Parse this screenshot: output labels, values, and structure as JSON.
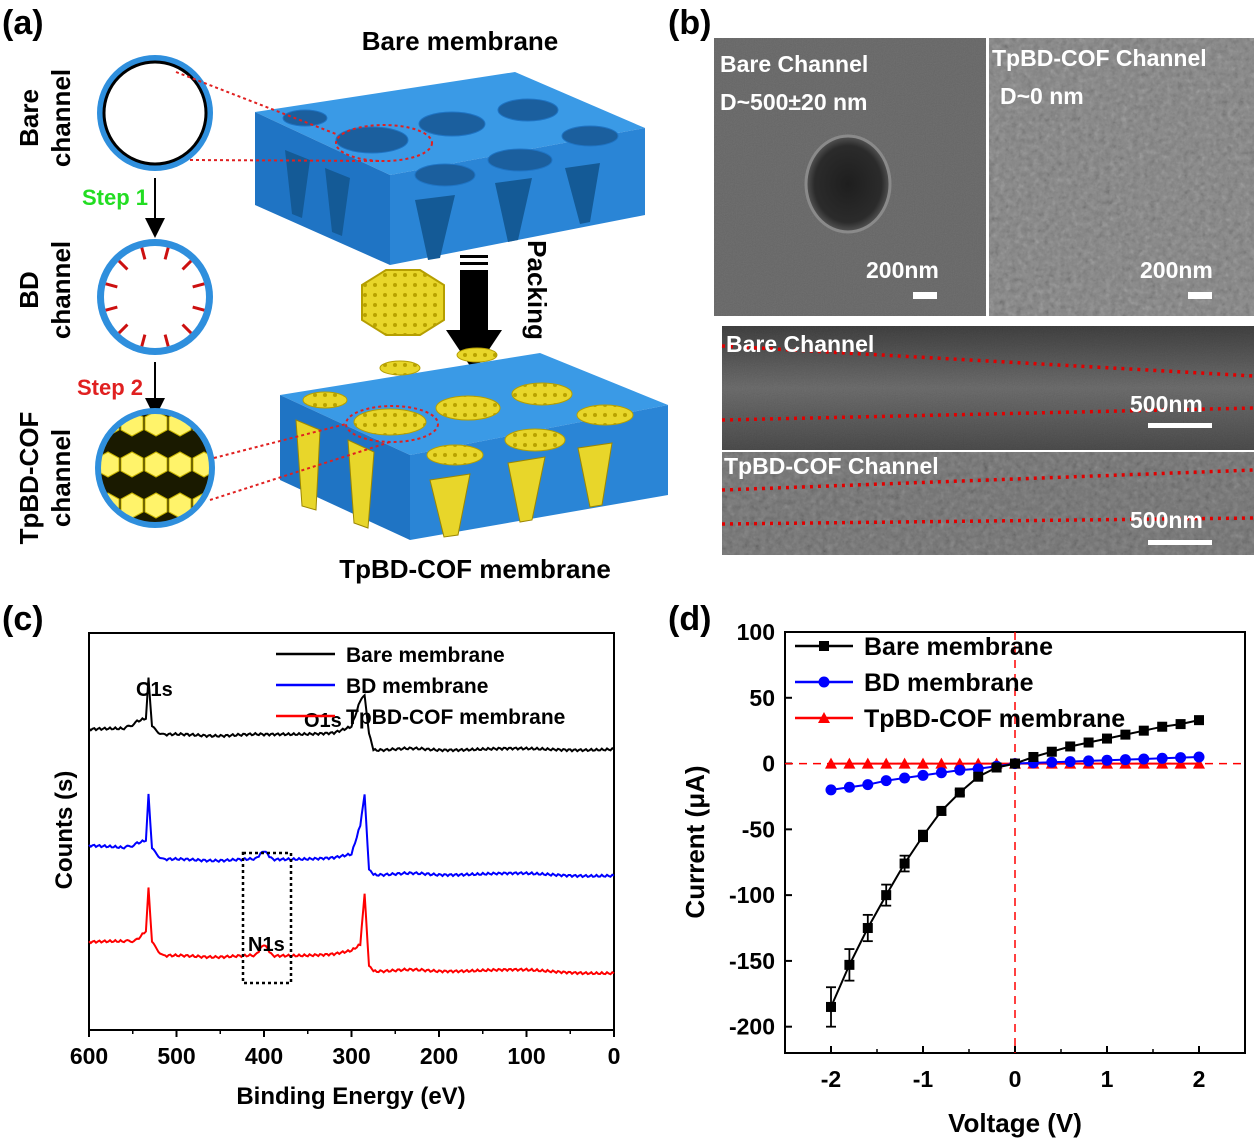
{
  "panel_labels": [
    "(a)",
    "(b)",
    "(c)",
    "(d)"
  ],
  "panel_a": {
    "channel_bare": [
      "Bare",
      "channel"
    ],
    "channel_bd": [
      "BD",
      "channel"
    ],
    "channel_cof": [
      "TpBD-COF",
      "channel"
    ],
    "step1": "Step 1",
    "step2": "Step 2",
    "bare_membrane": "Bare membrane",
    "packing": "Packing",
    "cof_membrane": "TpBD-COF membrane",
    "colors": {
      "membrane": "#2f8fdd",
      "cof": "#f2e028",
      "step1": "#22dd22",
      "step2": "#e02020"
    }
  },
  "panel_b": {
    "sem1_title": "Bare Channel",
    "sem1_d": "D~500±20 nm",
    "sem1_scale": "200nm",
    "sem2_title": "TpBD-COF Channel",
    "sem2_d": "D~0 nm",
    "sem2_scale": "200nm",
    "sem3_title": "Bare Channel",
    "sem3_scale": "500nm",
    "sem4_title": "TpBD-COF Channel",
    "sem4_scale": "500nm"
  },
  "chart_data": [
    {
      "type": "line",
      "panel": "(c)",
      "xlabel": "Binding Energy (eV)",
      "ylabel": "Counts (s)",
      "xlim": [
        600,
        0
      ],
      "xticks": [
        600,
        500,
        400,
        300,
        200,
        100,
        0
      ],
      "legend_position": "top-right",
      "annotations": [
        "C1s",
        "O1s",
        "N1s"
      ],
      "series": [
        {
          "name": "Bare membrane",
          "color": "#000000",
          "x": [
            600,
            560,
            545,
            535,
            532,
            528,
            515,
            400,
            320,
            300,
            290,
            285,
            280,
            275,
            200,
            100,
            0
          ],
          "y": [
            5.3,
            5.3,
            5.45,
            5.5,
            6.2,
            5.35,
            5.2,
            5.2,
            5.25,
            5.35,
            5.8,
            5.9,
            5.2,
            4.95,
            4.95,
            4.95,
            4.95
          ]
        },
        {
          "name": "BD membrane",
          "color": "#0000ff",
          "x": [
            600,
            560,
            545,
            535,
            532,
            528,
            515,
            410,
            400,
            390,
            320,
            300,
            290,
            285,
            280,
            275,
            200,
            100,
            0
          ],
          "y": [
            3.25,
            3.2,
            3.3,
            3.35,
            4.15,
            3.2,
            3.0,
            3.0,
            3.15,
            3.0,
            3.05,
            3.1,
            3.6,
            4.15,
            2.8,
            2.75,
            2.75,
            2.75,
            2.72
          ]
        },
        {
          "name": "TpBD-COF membrane",
          "color": "#ff0000",
          "x": [
            600,
            560,
            545,
            535,
            532,
            528,
            515,
            410,
            400,
            390,
            320,
            300,
            290,
            285,
            280,
            275,
            200,
            100,
            0
          ],
          "y": [
            1.55,
            1.55,
            1.6,
            1.75,
            2.5,
            1.55,
            1.3,
            1.3,
            1.5,
            1.3,
            1.35,
            1.4,
            1.5,
            2.4,
            1.1,
            1.05,
            1.05,
            1.05,
            1.0
          ]
        }
      ]
    },
    {
      "type": "line",
      "panel": "(d)",
      "xlabel": "Voltage (V)",
      "ylabel": "Current (μA)",
      "xlim": [
        -2.5,
        2.5
      ],
      "ylim": [
        -220,
        100
      ],
      "xticks": [
        -2,
        -1,
        0,
        1,
        2
      ],
      "yticks": [
        100,
        50,
        0,
        -50,
        -100,
        -150,
        -200
      ],
      "legend_position": "top-right",
      "reference_lines": {
        "x": 0,
        "y": 0,
        "color": "#ff0000",
        "style": "dashed"
      },
      "x": [
        -2.0,
        -1.8,
        -1.6,
        -1.4,
        -1.2,
        -1.0,
        -0.8,
        -0.6,
        -0.4,
        -0.2,
        0.0,
        0.2,
        0.4,
        0.6,
        0.8,
        1.0,
        1.2,
        1.4,
        1.6,
        1.8,
        2.0
      ],
      "series": [
        {
          "name": "Bare membrane",
          "color": "#000000",
          "marker": "square",
          "values": [
            -185,
            -153,
            -125,
            -100,
            -76,
            -55,
            -36,
            -22,
            -10,
            -3,
            0,
            5,
            9,
            13,
            16,
            19,
            22,
            25,
            28,
            30,
            33
          ],
          "errors": [
            15,
            12,
            10,
            8,
            6,
            4,
            3,
            2,
            1,
            1,
            1,
            1,
            1,
            1,
            1,
            1,
            1,
            1,
            1,
            1,
            2
          ]
        },
        {
          "name": "BD membrane",
          "color": "#0000ff",
          "marker": "circle",
          "values": [
            -20,
            -18,
            -16,
            -13,
            -11,
            -9,
            -7,
            -5,
            -4,
            -2,
            0,
            0.5,
            1,
            1.5,
            2,
            2.5,
            3,
            3.5,
            4,
            4.5,
            5
          ]
        },
        {
          "name": "TpBD-COF membrane",
          "color": "#ff0000",
          "marker": "triangle",
          "values": [
            0,
            0,
            0,
            0,
            0,
            0,
            0,
            0,
            0,
            0,
            0,
            0,
            0,
            0,
            0,
            0,
            0,
            0,
            0,
            0,
            0
          ]
        }
      ]
    }
  ]
}
